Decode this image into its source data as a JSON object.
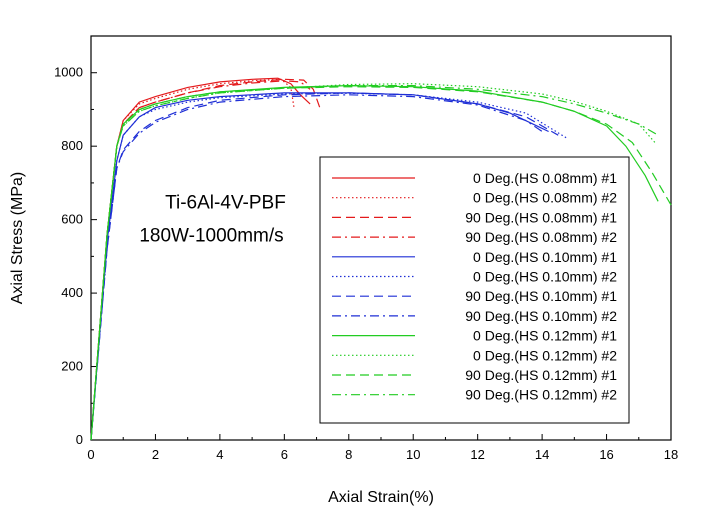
{
  "chart_data": {
    "type": "line",
    "title": "",
    "xlabel": "Axial Strain(%)",
    "ylabel": "Axial Stress (MPa)",
    "xlim": [
      0,
      18
    ],
    "ylim": [
      0,
      1100
    ],
    "xticks": [
      0,
      2,
      4,
      6,
      8,
      10,
      12,
      14,
      16,
      18
    ],
    "yticks": [
      0,
      200,
      400,
      600,
      800,
      1000
    ],
    "grid": false,
    "legend_position": "center-right",
    "annotations": [
      {
        "text": "Ti-6Al-4V-PBF",
        "x": 2.3,
        "y": 630
      },
      {
        "text": "180W-1000mm/s",
        "x": 1.5,
        "y": 540
      }
    ],
    "series": [
      {
        "name": "0 Deg.(HS 0.08mm) #1",
        "color": "#e41a1c",
        "dash": "solid",
        "x": [
          0,
          0.5,
          0.8,
          1.0,
          1.5,
          2,
          3,
          4,
          5,
          5.8,
          6.2,
          6.5,
          6.8
        ],
        "y": [
          0,
          560,
          800,
          870,
          920,
          935,
          960,
          975,
          982,
          985,
          970,
          940,
          915
        ]
      },
      {
        "name": "0 Deg.(HS 0.08mm) #2",
        "color": "#e41a1c",
        "dash": "dot",
        "x": [
          0,
          0.5,
          0.8,
          1.0,
          1.5,
          2,
          3,
          4,
          5,
          5.9,
          6.2,
          6.3
        ],
        "y": [
          0,
          560,
          800,
          870,
          915,
          930,
          955,
          970,
          978,
          982,
          960,
          905
        ]
      },
      {
        "name": "90 Deg.(HS 0.08mm) #1",
        "color": "#e41a1c",
        "dash": "dash",
        "x": [
          0,
          0.5,
          0.8,
          1.0,
          1.5,
          2,
          3,
          4,
          5,
          6,
          6.6,
          6.9,
          7.1
        ],
        "y": [
          0,
          560,
          800,
          860,
          905,
          920,
          945,
          965,
          975,
          982,
          980,
          955,
          905
        ]
      },
      {
        "name": "90 Deg.(HS 0.08mm) #2",
        "color": "#e41a1c",
        "dash": "dashdot",
        "x": [
          0,
          0.5,
          0.8,
          1.0,
          1.5,
          2,
          3,
          4,
          5,
          6,
          6.5,
          6.8
        ],
        "y": [
          0,
          560,
          800,
          860,
          905,
          920,
          945,
          962,
          972,
          978,
          975,
          955
        ]
      },
      {
        "name": "0 Deg.(HS 0.10mm) #1",
        "color": "#1f2fd6",
        "dash": "solid",
        "x": [
          0,
          0.5,
          0.8,
          1.0,
          1.5,
          2,
          3,
          4,
          6,
          8,
          10,
          12,
          13,
          14.2
        ],
        "y": [
          0,
          540,
          760,
          830,
          880,
          905,
          925,
          935,
          945,
          945,
          940,
          915,
          890,
          840
        ]
      },
      {
        "name": "0 Deg.(HS 0.10mm) #2",
        "color": "#1f2fd6",
        "dash": "dot",
        "x": [
          0,
          0.5,
          0.8,
          1.0,
          1.5,
          2,
          3,
          4,
          6,
          8,
          10,
          12,
          13.5,
          14.8
        ],
        "y": [
          0,
          540,
          760,
          830,
          880,
          900,
          920,
          932,
          942,
          944,
          940,
          920,
          890,
          820
        ]
      },
      {
        "name": "90 Deg.(HS 0.10mm) #1",
        "color": "#1f2fd6",
        "dash": "dash",
        "x": [
          0,
          0.5,
          0.8,
          1.0,
          1.5,
          2,
          3,
          4,
          6,
          8,
          10,
          12,
          13.5,
          14.5
        ],
        "y": [
          0,
          520,
          740,
          790,
          840,
          870,
          905,
          925,
          940,
          945,
          940,
          915,
          880,
          830
        ]
      },
      {
        "name": "90 Deg.(HS 0.10mm) #2",
        "color": "#1f2fd6",
        "dash": "dashdot",
        "x": [
          0,
          0.5,
          0.8,
          1.0,
          1.5,
          2,
          3,
          4,
          6,
          8,
          10,
          12,
          13.5,
          14.0
        ],
        "y": [
          0,
          520,
          740,
          785,
          835,
          865,
          900,
          920,
          935,
          940,
          935,
          912,
          870,
          840
        ]
      },
      {
        "name": "0 Deg.(HS 0.12mm) #1",
        "color": "#22cc22",
        "dash": "solid",
        "x": [
          0,
          0.5,
          0.8,
          1.0,
          1.5,
          2,
          3,
          4,
          6,
          8,
          10,
          12,
          14,
          15,
          16,
          16.6,
          17.2,
          17.6
        ],
        "y": [
          0,
          560,
          800,
          860,
          900,
          915,
          935,
          948,
          960,
          965,
          962,
          950,
          920,
          895,
          855,
          800,
          720,
          650
        ]
      },
      {
        "name": "0 Deg.(HS 0.12mm) #2",
        "color": "#22cc22",
        "dash": "dot",
        "x": [
          0,
          0.5,
          0.8,
          1.0,
          1.5,
          2,
          3,
          4,
          6,
          8,
          10,
          12,
          14,
          15,
          16,
          17,
          17.5
        ],
        "y": [
          0,
          560,
          800,
          855,
          895,
          910,
          930,
          945,
          958,
          968,
          970,
          962,
          942,
          922,
          895,
          860,
          810
        ]
      },
      {
        "name": "90 Deg.(HS 0.12mm) #1",
        "color": "#22cc22",
        "dash": "dash",
        "x": [
          0,
          0.5,
          0.8,
          1.0,
          1.5,
          2,
          3,
          4,
          6,
          8,
          10,
          12,
          14,
          15,
          16,
          16.8,
          17.4,
          18.0
        ],
        "y": [
          0,
          560,
          800,
          860,
          900,
          915,
          935,
          948,
          958,
          962,
          960,
          948,
          920,
          895,
          860,
          810,
          730,
          640
        ]
      },
      {
        "name": "90 Deg.(HS 0.12mm) #2",
        "color": "#22cc22",
        "dash": "dashdot",
        "x": [
          0,
          0.5,
          0.8,
          1.0,
          1.5,
          2,
          3,
          4,
          6,
          8,
          10,
          12,
          14,
          15,
          16,
          17,
          17.6
        ],
        "y": [
          0,
          560,
          800,
          855,
          895,
          910,
          930,
          945,
          958,
          965,
          965,
          955,
          935,
          915,
          890,
          860,
          830
        ]
      }
    ]
  }
}
